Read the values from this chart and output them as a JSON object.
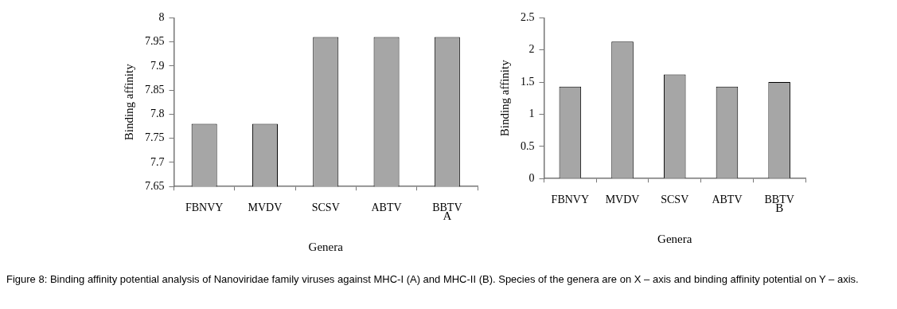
{
  "chart_data": [
    {
      "type": "bar",
      "xlabel": "Genera",
      "ylabel": "Binding affinity",
      "categories": [
        "FBNVY",
        "MVDV",
        "SCSV",
        "ABTV",
        "BBTV"
      ],
      "values": [
        7.78,
        7.78,
        7.96,
        7.96,
        7.96
      ],
      "color": "#a6a6a6",
      "ylim": [
        7.65,
        8
      ],
      "yticks": [
        7.65,
        7.7,
        7.75,
        7.8,
        7.85,
        7.9,
        7.95,
        8
      ],
      "grid": false,
      "legend": false,
      "annotations": [
        "A",
        "Figure 8: Binding affinity potential analysis of Nanoviridae family viruses against MHC-I (A) and MHC-II (B). Species of the genera are on X – axis and binding affinity potential on Y – axis."
      ]
    },
    {
      "type": "bar",
      "xlabel": "Genera",
      "ylabel": "Binding affinity",
      "categories": [
        "FBNVY",
        "MVDV",
        "SCSV",
        "ABTV",
        "BBTV"
      ],
      "values": [
        1.43,
        2.13,
        1.62,
        1.43,
        1.5
      ],
      "color": "#a6a6a6",
      "ylim": [
        0,
        2.5
      ],
      "yticks": [
        0,
        0.5,
        1,
        1.5,
        2,
        2.5
      ],
      "grid": false,
      "legend": false,
      "annotations": [
        "B"
      ]
    }
  ]
}
